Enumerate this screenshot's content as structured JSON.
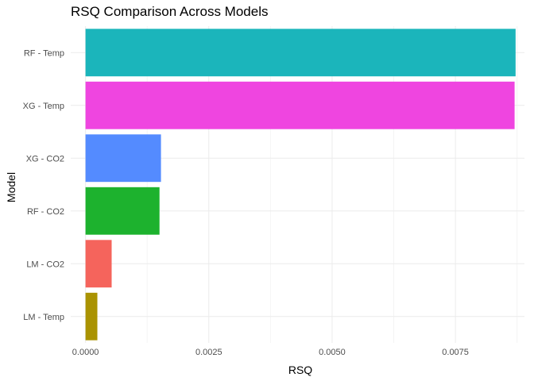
{
  "chart_data": {
    "type": "bar",
    "orientation": "horizontal",
    "title": "RSQ Comparison Across Models",
    "xlabel": "RSQ",
    "ylabel": "Model",
    "xlim": [
      -0.0003,
      0.0089
    ],
    "x_ticks": [
      "0.0000",
      "0.0025",
      "0.0050",
      "0.0075"
    ],
    "x_tick_values": [
      0,
      0.0025,
      0.005,
      0.0075
    ],
    "categories": [
      "RF - Temp",
      "XG - Temp",
      "XG - CO2",
      "RF - CO2",
      "LM - CO2",
      "LM - Temp"
    ],
    "values": [
      0.00872,
      0.0087,
      0.00153,
      0.0015,
      0.00053,
      0.00024
    ],
    "colors": [
      "#1BB5BB",
      "#EF45E0",
      "#548BFF",
      "#1DB22E",
      "#F5645C",
      "#AA9302"
    ],
    "grid": true,
    "legend": "none"
  }
}
